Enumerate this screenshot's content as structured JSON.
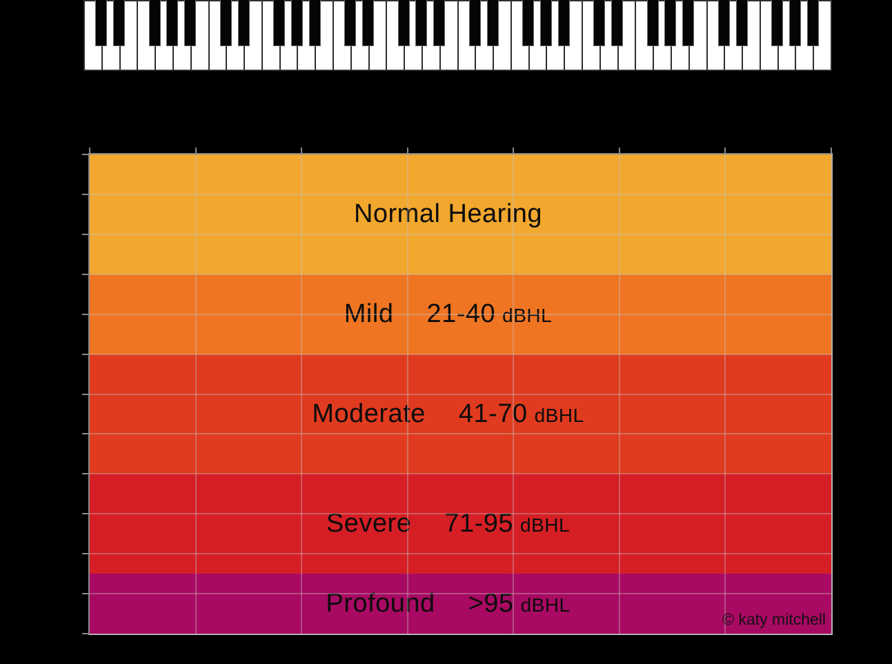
{
  "canvas": {
    "background": "#000000"
  },
  "piano": {
    "white_key_count": 42,
    "octaves": 6,
    "first_note": "C",
    "black_key_boundaries_in_octave": [
      1,
      2,
      4,
      5,
      6
    ],
    "white_key_color": "#ffffff",
    "black_key_color": "#050505"
  },
  "chart_data": {
    "type": "area",
    "title": "",
    "description": "Audiogram degrees-of-hearing-loss bands aligned under a piano keyboard; axis tick labels are not visible against the black background",
    "grid": true,
    "legend_position": "none",
    "x_axis": {
      "tick_count": 8,
      "intervals": 7,
      "labels_visible": false
    },
    "y_axis": {
      "tick_count": 13,
      "intervals": 12,
      "unit": "dBHL",
      "labels_visible": false
    },
    "bands": [
      {
        "name": "Normal Hearing",
        "range": "",
        "unit": "",
        "color": "#F2A72E",
        "height_frac": 0.25
      },
      {
        "name": "Mild",
        "range": "21-40",
        "unit": "dBHL",
        "color": "#EF7522",
        "height_frac": 0.16667
      },
      {
        "name": "Moderate",
        "range": "41-70",
        "unit": "dBHL",
        "color": "#E03B1F",
        "height_frac": 0.25
      },
      {
        "name": "Severe",
        "range": "71-95",
        "unit": "dBHL",
        "color": "#D61E25",
        "height_frac": 0.20833
      },
      {
        "name": "Profound",
        "range": ">95",
        "unit": "dBHL",
        "color": "#A80962",
        "height_frac": 0.125
      }
    ],
    "credit": "© katy mitchell",
    "axis_color": "#8a8a8a",
    "border_color": "#b3b3b3"
  }
}
